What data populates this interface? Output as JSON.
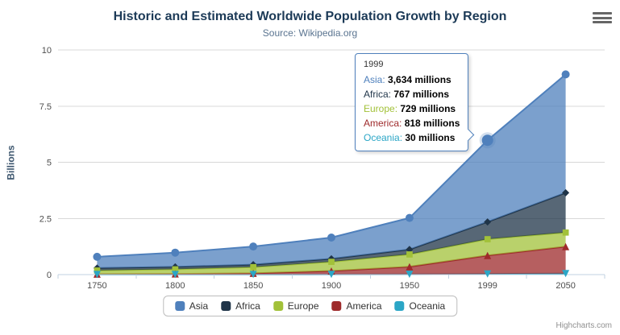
{
  "chart_data": {
    "type": "area",
    "stacking": "normal",
    "title": "Historic and Estimated Worldwide Population Growth by Region",
    "subtitle": "Source: Wikipedia.org",
    "xlabel": "",
    "ylabel": "Billions",
    "categories": [
      "1750",
      "1800",
      "1850",
      "1900",
      "1950",
      "1999",
      "2050"
    ],
    "ylim": [
      0,
      10
    ],
    "yticks": [
      0,
      2.5,
      5,
      7.5,
      10
    ],
    "ytick_labels": [
      "0",
      "2.5",
      "5",
      "7.5",
      "10"
    ],
    "grid": true,
    "legend_position": "bottom",
    "unit": "millions",
    "series": [
      {
        "name": "Asia",
        "color": "#4F80BC",
        "marker": "circle",
        "values": [
          502,
          635,
          809,
          947,
          1402,
          3634,
          5268
        ]
      },
      {
        "name": "Africa",
        "color": "#1F3448",
        "marker": "diamond",
        "values": [
          106,
          107,
          111,
          133,
          221,
          767,
          1766
        ]
      },
      {
        "name": "Europe",
        "color": "#A2C139",
        "marker": "square",
        "values": [
          163,
          203,
          276,
          408,
          547,
          729,
          628
        ]
      },
      {
        "name": "America",
        "color": "#9E2A2B",
        "marker": "triangle",
        "values": [
          18,
          31,
          54,
          156,
          339,
          818,
          1201
        ]
      },
      {
        "name": "Oceania",
        "color": "#2BA6C6",
        "marker": "triangle-down",
        "values": [
          2,
          2,
          2,
          6,
          13,
          30,
          46
        ]
      }
    ]
  },
  "tooltip": {
    "header": "1999",
    "hovered_series": "Asia",
    "rows": [
      {
        "series": "Asia",
        "value": "3,634 millions"
      },
      {
        "series": "Africa",
        "value": "767 millions"
      },
      {
        "series": "Europe",
        "value": "729 millions"
      },
      {
        "series": "America",
        "value": "818 millions"
      },
      {
        "series": "Oceania",
        "value": "30 millions"
      }
    ]
  },
  "credits": {
    "label": "Highcharts.com"
  },
  "icons": {
    "menu": "hamburger-menu-icon"
  }
}
